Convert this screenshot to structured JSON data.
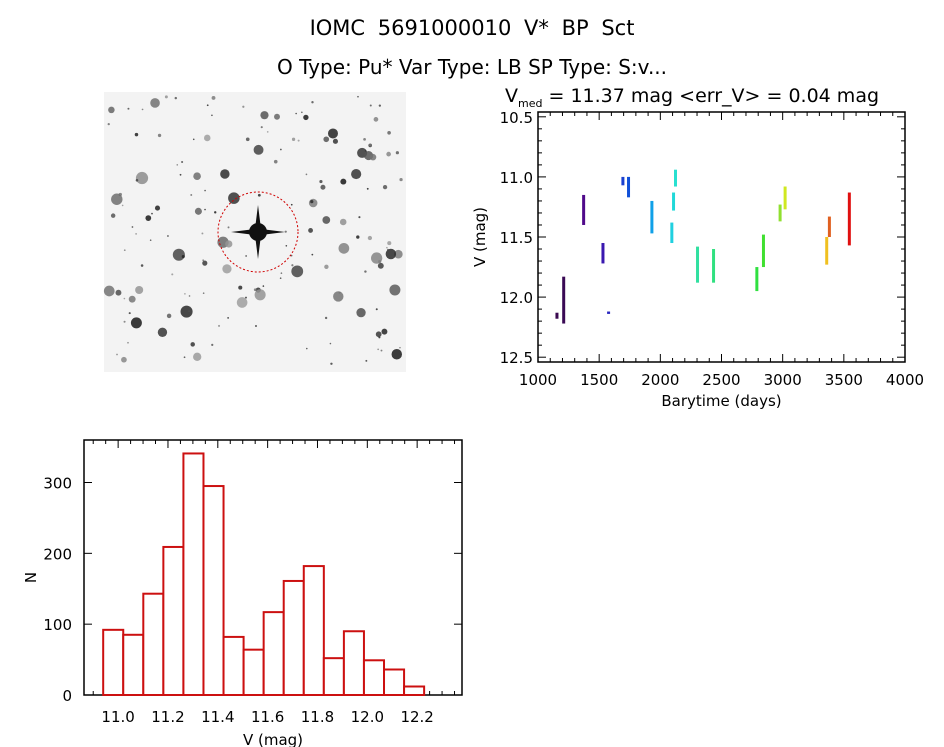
{
  "header": {
    "title": "IOMC 5691000010    V* BP Sct",
    "subtitle": "O Type: Pu*  Var Type: LB  SP Type: S:v..."
  },
  "finder_image": {
    "description_color_circle": "#d00000"
  },
  "chart_data": [
    {
      "type": "scatter",
      "title_prefix": "V",
      "title_sub": "med",
      "title_rest": " = 11.37 mag <err_V> = 0.04 mag",
      "xlabel": "Barytime (days)",
      "ylabel": "V (mag)",
      "xlim": [
        1000,
        4000
      ],
      "ylim": [
        12.54,
        10.46
      ],
      "y_inverted": true,
      "xticks": [
        "1000",
        "1500",
        "2000",
        "2500",
        "3000",
        "3500",
        "4000"
      ],
      "yticks": [
        "10.5",
        "11.0",
        "11.5",
        "12.0",
        "12.5"
      ],
      "segments": [
        {
          "x": 1155,
          "vmin": 12.13,
          "vmax": 12.18,
          "color": "#3a0a50"
        },
        {
          "x": 1210,
          "vmin": 11.83,
          "vmax": 12.22,
          "color": "#3a0a55"
        },
        {
          "x": 1373,
          "vmin": 11.15,
          "vmax": 11.4,
          "color": "#500a8a"
        },
        {
          "x": 1531,
          "vmin": 11.55,
          "vmax": 11.72,
          "color": "#3a18b0"
        },
        {
          "x": 1577,
          "vmin": 12.12,
          "vmax": 12.14,
          "color": "#2a28c0"
        },
        {
          "x": 1694,
          "vmin": 11.0,
          "vmax": 11.07,
          "color": "#1a40d0"
        },
        {
          "x": 1740,
          "vmin": 11.0,
          "vmax": 11.17,
          "color": "#1050d8"
        },
        {
          "x": 1931,
          "vmin": 11.2,
          "vmax": 11.47,
          "color": "#10a0e8"
        },
        {
          "x": 2094,
          "vmin": 11.38,
          "vmax": 11.55,
          "color": "#20d0e0"
        },
        {
          "x": 2108,
          "vmin": 11.13,
          "vmax": 11.28,
          "color": "#20d8d8"
        },
        {
          "x": 2124,
          "vmin": 10.94,
          "vmax": 11.08,
          "color": "#28e0d0"
        },
        {
          "x": 2304,
          "vmin": 11.58,
          "vmax": 11.88,
          "color": "#30e0a0"
        },
        {
          "x": 2435,
          "vmin": 11.6,
          "vmax": 11.88,
          "color": "#30e080"
        },
        {
          "x": 2789,
          "vmin": 11.75,
          "vmax": 11.95,
          "color": "#30e040"
        },
        {
          "x": 2843,
          "vmin": 11.48,
          "vmax": 11.75,
          "color": "#40e030"
        },
        {
          "x": 2979,
          "vmin": 11.23,
          "vmax": 11.37,
          "color": "#90e030"
        },
        {
          "x": 3020,
          "vmin": 11.08,
          "vmax": 11.27,
          "color": "#d0e820"
        },
        {
          "x": 3360,
          "vmin": 11.5,
          "vmax": 11.73,
          "color": "#f0c020"
        },
        {
          "x": 3382,
          "vmin": 11.33,
          "vmax": 11.5,
          "color": "#e06020"
        },
        {
          "x": 3545,
          "vmin": 11.13,
          "vmax": 11.57,
          "color": "#e01010"
        }
      ]
    },
    {
      "type": "bar",
      "xlabel": "V (mag)",
      "ylabel": "N",
      "xlim": [
        10.863,
        12.38
      ],
      "ylim": [
        0,
        360
      ],
      "xticks": [
        "11.0",
        "11.2",
        "11.4",
        "11.6",
        "11.8",
        "12.0",
        "12.2"
      ],
      "yticks": [
        "0",
        "100",
        "200",
        "300"
      ],
      "bin_start": 10.94,
      "bin_width": 0.0805,
      "values": [
        92,
        85,
        143,
        209,
        341,
        295,
        82,
        64,
        117,
        161,
        182,
        52,
        90,
        49,
        36,
        12
      ],
      "color": "#cc1010"
    }
  ]
}
